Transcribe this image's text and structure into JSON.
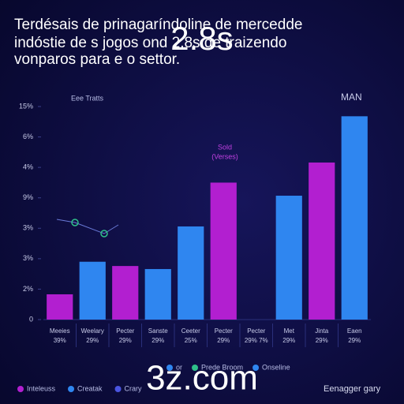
{
  "chart_data": {
    "type": "bar",
    "title_lines": [
      "Terdésais de prinagaríndoline de mercedde",
      "indóstie de s jogos ond 2.8s de traizendo",
      "vonparos para e o settor."
    ],
    "overlay_top": "2.8s",
    "overlay_bottom": "3z.com",
    "legend_top": "Eee Tratts",
    "corner_label": "MAN",
    "annotation": [
      "Sold",
      "(Verses)"
    ],
    "mid_legend": [
      "or",
      "Prede Broom",
      "Onseline"
    ],
    "bottom_legend": [
      "Inteleuss",
      "Creatak",
      "Crary"
    ],
    "footer_right": "Eenagger gary",
    "categories": [
      "Meeies",
      "Weelary",
      "Pecter",
      "Sanste",
      "Ceeter",
      "Pecter",
      "Pecter",
      "Met",
      "Jinta",
      "Eaen"
    ],
    "category_notes": [
      "39%",
      "29%",
      "29%",
      "29%",
      "25%",
      "29%",
      "29% 7%",
      "29%",
      "29%",
      "29%"
    ],
    "values": [
      0.83,
      1.9,
      1.76,
      1.66,
      3.06,
      4.5,
      null,
      4.07,
      5.16,
      6.68
    ],
    "colors": [
      "#b21fd0",
      "#2f86f0",
      "#b21fd0",
      "#2f86f0",
      "#2f86f0",
      "#b21fd0",
      "#2f86f0",
      "#2f86f0",
      "#b21fd0",
      "#2f86f0"
    ],
    "ylim": [
      0,
      7
    ],
    "yticks": [
      0,
      {
        "value": 1,
        "label": "2%"
      },
      {
        "value": 2,
        "label": "3%"
      },
      {
        "value": 3,
        "label": "3%"
      },
      {
        "value": 4,
        "label": "9%"
      },
      {
        "value": 5,
        "label": "4%"
      },
      {
        "value": 6,
        "label": "6%"
      },
      {
        "value": 7,
        "label": "15%"
      }
    ],
    "legend_colors": [
      "#b21fd0",
      "#2f86f0",
      "#4a55e0"
    ],
    "mid_legend_colors": [
      "#2f86f0",
      "#2fc08a",
      "#2f86f0"
    ]
  }
}
